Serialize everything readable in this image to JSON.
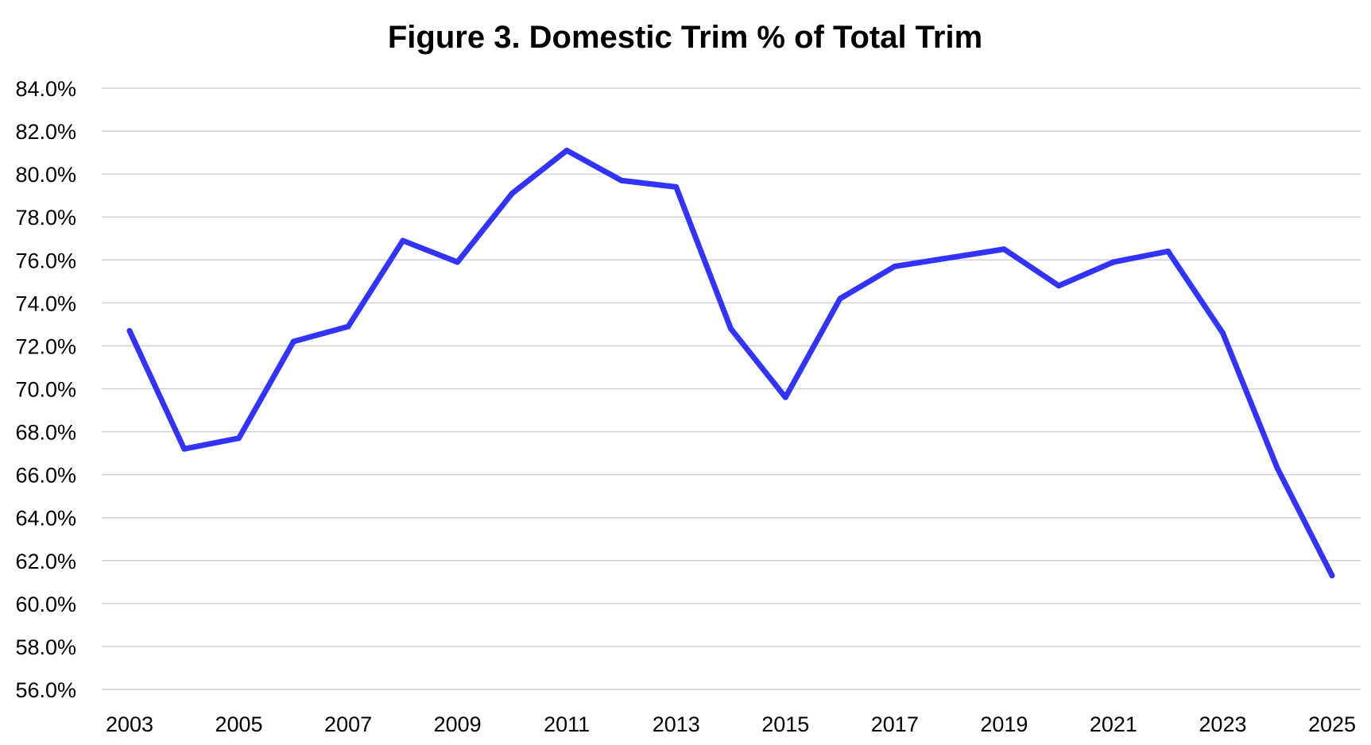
{
  "chart_data": {
    "type": "line",
    "title": "Figure 3. Domestic Trim % of Total Trim",
    "xlabel": "",
    "ylabel": "",
    "x": [
      2003,
      2004,
      2005,
      2006,
      2007,
      2008,
      2009,
      2010,
      2011,
      2012,
      2013,
      2014,
      2015,
      2016,
      2017,
      2018,
      2019,
      2020,
      2021,
      2022,
      2023,
      2024,
      2025
    ],
    "x_tick_labels": [
      "2003",
      "2005",
      "2007",
      "2009",
      "2011",
      "2013",
      "2015",
      "2017",
      "2019",
      "2021",
      "2023",
      "2025"
    ],
    "x_ticks": [
      2003,
      2005,
      2007,
      2009,
      2011,
      2013,
      2015,
      2017,
      2019,
      2021,
      2023,
      2025
    ],
    "xlim": [
      2003,
      2025
    ],
    "ylim": [
      56,
      84
    ],
    "y_ticks": [
      56,
      58,
      60,
      62,
      64,
      66,
      68,
      70,
      72,
      74,
      76,
      78,
      80,
      82,
      84
    ],
    "y_tick_labels": [
      "56.0%",
      "58.0%",
      "60.0%",
      "62.0%",
      "64.0%",
      "66.0%",
      "68.0%",
      "70.0%",
      "72.0%",
      "74.0%",
      "76.0%",
      "78.0%",
      "80.0%",
      "82.0%",
      "84.0%"
    ],
    "grid": true,
    "legend": "none",
    "series": [
      {
        "color": "#3333ff",
        "values": [
          72.7,
          67.2,
          67.7,
          72.2,
          72.9,
          76.9,
          75.9,
          79.1,
          81.1,
          79.7,
          79.4,
          72.8,
          69.6,
          74.2,
          75.7,
          76.1,
          76.5,
          74.8,
          75.9,
          76.4,
          72.6,
          66.3,
          61.3
        ]
      }
    ]
  }
}
